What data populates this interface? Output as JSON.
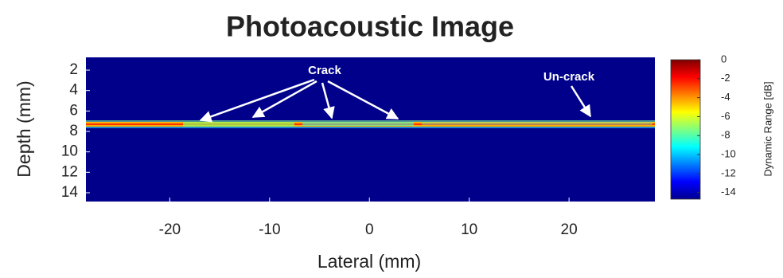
{
  "chart_data": {
    "type": "image",
    "title": "Photoacoustic Image",
    "xlabel": "Lateral (mm)",
    "ylabel": "Depth (mm)",
    "xlim": [
      -28.4,
      28.6
    ],
    "xticks": [
      -20,
      -10,
      0,
      10,
      20
    ],
    "ylim": [
      0.75,
      14.86
    ],
    "yticks": [
      2,
      4,
      6,
      8,
      10,
      12,
      14
    ],
    "colorbar": {
      "label": "Dynamic Range [dB]",
      "lim": [
        -14.7,
        0
      ],
      "ticks": [
        0,
        -2,
        -4,
        -6,
        -8,
        -10,
        -12,
        -14
      ]
    },
    "annotations": [
      "Crack",
      "Un-crack"
    ]
  }
}
